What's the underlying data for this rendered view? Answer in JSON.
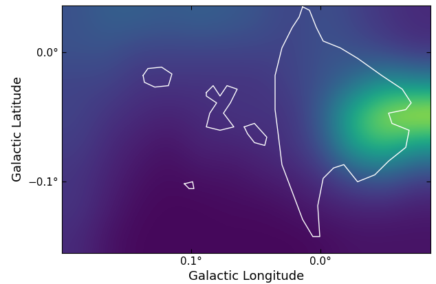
{
  "chart_data": {
    "type": "heatmap",
    "x_label": "Galactic Longitude",
    "y_label": "Galactic Latitude",
    "xlim": [
      0.2,
      -0.085
    ],
    "ylim": [
      -0.155,
      0.036
    ],
    "xticks": [
      {
        "value": 0.1,
        "label": "0.1°"
      },
      {
        "value": 0.0,
        "label": "0.0°"
      }
    ],
    "yticks": [
      {
        "value": 0.0,
        "label": "0.0°"
      },
      {
        "value": -0.1,
        "label": "−0.1°"
      }
    ],
    "value_range": [
      0,
      1
    ],
    "cells": [
      [
        0.25,
        0.3,
        0.3,
        0.28,
        0.3,
        0.28,
        0.25,
        0.2,
        0.25,
        0.2,
        0.15,
        0.12
      ],
      [
        0.25,
        0.25,
        0.2,
        0.2,
        0.2,
        0.2,
        0.2,
        0.2,
        0.25,
        0.25,
        0.2,
        0.15
      ],
      [
        0.2,
        0.2,
        0.15,
        0.15,
        0.15,
        0.15,
        0.15,
        0.2,
        0.25,
        0.35,
        0.5,
        0.45
      ],
      [
        0.2,
        0.15,
        0.12,
        0.1,
        0.12,
        0.15,
        0.15,
        0.15,
        0.3,
        0.65,
        0.85,
        0.95
      ],
      [
        0.18,
        0.12,
        0.08,
        0.05,
        0.1,
        0.1,
        0.12,
        0.15,
        0.25,
        0.6,
        0.7,
        0.55
      ],
      [
        0.15,
        0.1,
        0.05,
        0.03,
        0.05,
        0.05,
        0.08,
        0.1,
        0.15,
        0.25,
        0.3,
        0.2
      ],
      [
        0.15,
        0.08,
        0.03,
        0.02,
        0.02,
        0.03,
        0.03,
        0.05,
        0.08,
        0.1,
        0.1,
        0.08
      ],
      [
        0.12,
        0.05,
        0.02,
        0.02,
        0.02,
        0.02,
        0.02,
        0.02,
        0.03,
        0.05,
        0.05,
        0.05
      ]
    ],
    "contours": [
      {
        "lon": [
          0.0138,
          0.0165,
          0.0218,
          0.0298,
          0.0351,
          0.0351,
          0.0324,
          0.0298,
          0.0218,
          0.0138,
          0.0059,
          0.0005,
          0.0021,
          -0.0021,
          -0.0101,
          -0.0181,
          -0.0287,
          -0.042,
          -0.0527,
          -0.066,
          -0.0686,
          -0.0553,
          -0.0527,
          -0.066,
          -0.0702,
          -0.0633,
          -0.0473,
          -0.0287,
          -0.0154,
          -0.0021,
          0.0032,
          0.0085,
          0.0138
        ],
        "lat": [
          0.0349,
          0.027,
          0.019,
          0.0032,
          -0.018,
          -0.0444,
          -0.0656,
          -0.0868,
          -0.1079,
          -0.1291,
          -0.1423,
          -0.1423,
          -0.1185,
          -0.0974,
          -0.0894,
          -0.0868,
          -0.1,
          -0.0947,
          -0.0841,
          -0.0735,
          -0.0603,
          -0.055,
          -0.0471,
          -0.0444,
          -0.0392,
          -0.0286,
          -0.018,
          -0.0048,
          0.0032,
          0.0085,
          0.019,
          0.0323,
          0.0349
        ]
      },
      {
        "lon": [
          0.1372,
          0.1335,
          0.1229,
          0.1149,
          0.1176,
          0.1282,
          0.1362,
          0.1372
        ],
        "lat": [
          -0.018,
          -0.0127,
          -0.0116,
          -0.0169,
          -0.0259,
          -0.027,
          -0.0233,
          -0.018
        ]
      },
      {
        "lon": [
          0.0883,
          0.083,
          0.0777,
          0.0723,
          0.0644,
          0.0697,
          0.075,
          0.067,
          0.0777,
          0.0883,
          0.0856,
          0.0803,
          0.0883,
          0.0883
        ],
        "lat": [
          -0.0312,
          -0.0259,
          -0.0339,
          -0.0259,
          -0.0286,
          -0.0392,
          -0.0471,
          -0.0577,
          -0.0603,
          -0.0577,
          -0.0471,
          -0.0392,
          -0.0339,
          -0.0312
        ]
      },
      {
        "lon": [
          0.059,
          0.0511,
          0.0415,
          0.0431,
          0.0511,
          0.0564,
          0.059
        ],
        "lat": [
          -0.0577,
          -0.055,
          -0.0656,
          -0.072,
          -0.0698,
          -0.063,
          -0.0577
        ]
      },
      {
        "lon": [
          0.1053,
          0.0989,
          0.0979,
          0.1016,
          0.1053
        ],
        "lat": [
          -0.1016,
          -0.1,
          -0.1053,
          -0.1053,
          -0.1016
        ]
      }
    ]
  }
}
